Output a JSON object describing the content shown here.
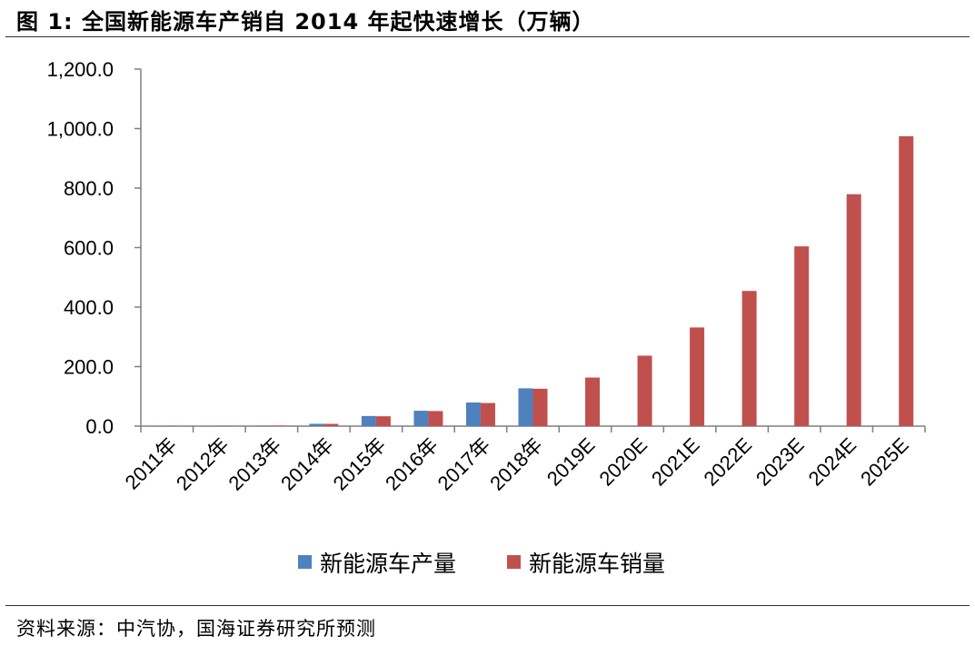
{
  "figure": {
    "title": "图 1:  全国新能源车产销自 2014 年起快速增长（万辆）",
    "source": "资料来源：中汽协，国海证券研究所预测"
  },
  "chart_data": {
    "type": "bar",
    "categories": [
      "2011年",
      "2012年",
      "2013年",
      "2014年",
      "2015年",
      "2016年",
      "2017年",
      "2018年",
      "2019E",
      "2020E",
      "2021E",
      "2022E",
      "2023E",
      "2024E",
      "2025E"
    ],
    "series": [
      {
        "name": "新能源车产量",
        "color": "#4f81bd",
        "values": [
          0.8,
          1.3,
          1.8,
          7.8,
          34.0,
          51.7,
          79.4,
          127.0,
          null,
          null,
          null,
          null,
          null,
          null,
          null
        ]
      },
      {
        "name": "新能源车销量",
        "color": "#c0504d",
        "values": [
          0.8,
          1.3,
          1.8,
          7.5,
          33.1,
          50.7,
          77.7,
          125.6,
          163.3,
          236.8,
          331.6,
          454.3,
          604.2,
          779.4,
          974.3
        ]
      }
    ],
    "yticks": [
      "0.0",
      "200.0",
      "400.0",
      "600.0",
      "800.0",
      "1,000.0",
      "1,200.0"
    ],
    "ylim": [
      0,
      1200
    ],
    "grid": false,
    "legend_position": "bottom",
    "xlabel": "",
    "ylabel": ""
  }
}
